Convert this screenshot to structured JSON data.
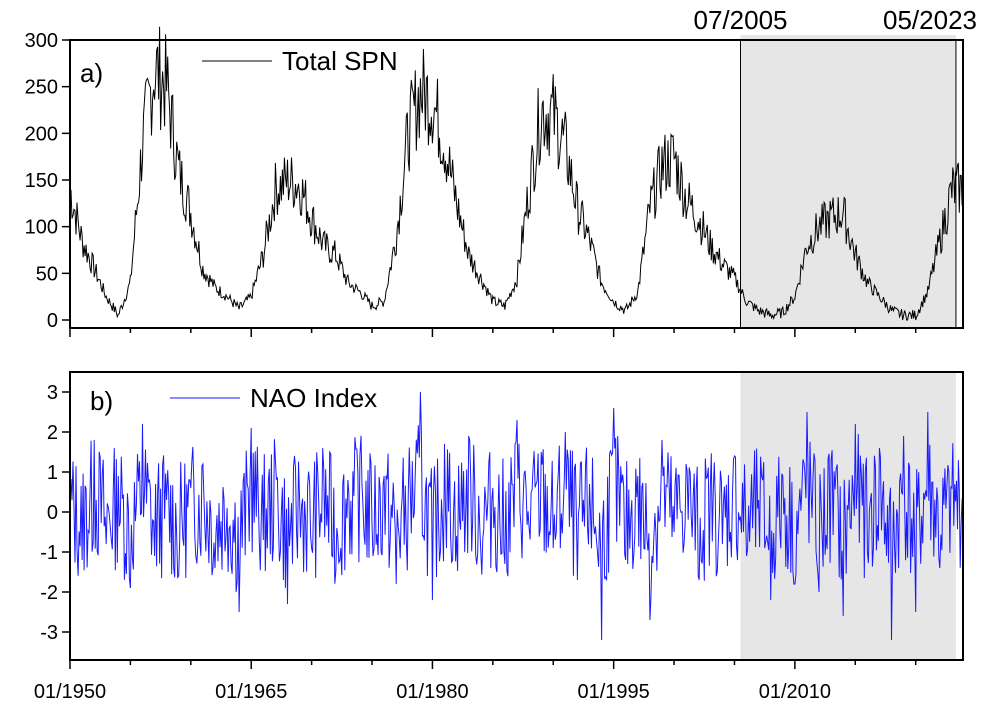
{
  "figure": {
    "markers": [
      {
        "label": "07/2005",
        "date": "2005-07"
      },
      {
        "label": "05/2023",
        "date": "2023-05"
      }
    ],
    "x_ticks": [
      "01/1950",
      "01/1965",
      "01/1980",
      "01/1995",
      "01/2010"
    ]
  },
  "chart_data": [
    {
      "type": "line",
      "panel": "a)",
      "title": "",
      "xlabel": "",
      "ylabel": "",
      "xlim": [
        "1950-01",
        "2023-12"
      ],
      "ylim": [
        0,
        300
      ],
      "y_ticks": [
        0,
        50,
        100,
        150,
        200,
        250,
        300
      ],
      "shaded_interval": [
        "2005-07",
        "2023-05"
      ],
      "series": [
        {
          "name": "Total SPN",
          "color": "#000000",
          "x": [
            "1950-01",
            "1951-01",
            "1952-01",
            "1953-01",
            "1954-01",
            "1955-01",
            "1956-01",
            "1957-01",
            "1958-01",
            "1959-01",
            "1960-01",
            "1961-01",
            "1962-01",
            "1963-01",
            "1964-01",
            "1965-01",
            "1966-01",
            "1967-01",
            "1968-01",
            "1969-01",
            "1970-01",
            "1971-01",
            "1972-01",
            "1973-01",
            "1974-01",
            "1975-01",
            "1976-01",
            "1977-01",
            "1978-01",
            "1979-01",
            "1980-01",
            "1981-01",
            "1982-01",
            "1983-01",
            "1984-01",
            "1985-01",
            "1986-01",
            "1987-01",
            "1988-01",
            "1989-01",
            "1990-01",
            "1991-01",
            "1992-01",
            "1993-01",
            "1994-01",
            "1995-01",
            "1996-01",
            "1997-01",
            "1998-01",
            "1999-01",
            "2000-01",
            "2001-01",
            "2002-01",
            "2003-01",
            "2004-01",
            "2005-01",
            "2006-01",
            "2007-01",
            "2008-01",
            "2009-01",
            "2010-01",
            "2011-01",
            "2012-01",
            "2013-01",
            "2014-01",
            "2015-01",
            "2016-01",
            "2017-01",
            "2018-01",
            "2019-01",
            "2020-01",
            "2021-01",
            "2022-01",
            "2023-01"
          ],
          "values": [
            140,
            85,
            55,
            25,
            5,
            40,
            190,
            270,
            250,
            160,
            115,
            55,
            35,
            25,
            12,
            25,
            70,
            140,
            150,
            145,
            110,
            80,
            70,
            40,
            30,
            15,
            20,
            90,
            200,
            245,
            235,
            190,
            125,
            70,
            45,
            20,
            15,
            45,
            140,
            225,
            220,
            185,
            120,
            85,
            40,
            20,
            10,
            30,
            120,
            165,
            175,
            130,
            110,
            80,
            60,
            45,
            20,
            10,
            5,
            8,
            25,
            80,
            100,
            110,
            115,
            70,
            40,
            25,
            10,
            5,
            5,
            30,
            85,
            140
          ]
        }
      ]
    },
    {
      "type": "line",
      "panel": "b)",
      "title": "",
      "xlabel": "",
      "ylabel": "",
      "xlim": [
        "1950-01",
        "2023-12"
      ],
      "ylim": [
        -3.5,
        3.5
      ],
      "y_ticks": [
        -3,
        -2,
        -1,
        0,
        1,
        2,
        3
      ],
      "shaded_interval": [
        "2005-07",
        "2023-05"
      ],
      "series": [
        {
          "name": "NAO Index",
          "color": "#1a1aff",
          "x": [
            "1950-01",
            "1951-01",
            "1952-01",
            "1953-01",
            "1954-01",
            "1955-01",
            "1956-01",
            "1957-01",
            "1958-01",
            "1959-01",
            "1960-01",
            "1961-01",
            "1962-01",
            "1963-01",
            "1964-01",
            "1965-01",
            "1966-01",
            "1967-01",
            "1968-01",
            "1969-01",
            "1970-01",
            "1971-01",
            "1972-01",
            "1973-01",
            "1974-01",
            "1975-01",
            "1976-01",
            "1977-01",
            "1978-01",
            "1979-01",
            "1980-01",
            "1981-01",
            "1982-01",
            "1983-01",
            "1984-01",
            "1985-01",
            "1986-01",
            "1987-01",
            "1988-01",
            "1989-01",
            "1990-01",
            "1991-01",
            "1992-01",
            "1993-01",
            "1994-01",
            "1995-01",
            "1996-01",
            "1997-01",
            "1998-01",
            "1999-01",
            "2000-01",
            "2001-01",
            "2002-01",
            "2003-01",
            "2004-01",
            "2005-01",
            "2006-01",
            "2007-01",
            "2008-01",
            "2009-01",
            "2010-01",
            "2011-01",
            "2012-01",
            "2013-01",
            "2014-01",
            "2015-01",
            "2016-01",
            "2017-01",
            "2018-01",
            "2019-01",
            "2020-01",
            "2021-01",
            "2022-01",
            "2023-01"
          ],
          "values": [
            0.5,
            -1.2,
            1.8,
            -0.8,
            0.9,
            -1.9,
            2.2,
            -1.1,
            0.3,
            -1.6,
            0.6,
            1.2,
            -1.4,
            0.1,
            -2.5,
            2.1,
            -0.7,
            1.3,
            -2.3,
            0.4,
            -0.9,
            1.1,
            -1.5,
            0.8,
            1.4,
            -0.3,
            0.9,
            -1.8,
            0.5,
            3.0,
            -2.2,
            1.7,
            -0.6,
            1.9,
            -1.0,
            0.6,
            -1.3,
            2.3,
            -0.4,
            1.5,
            -0.9,
            2.0,
            -1.7,
            0.7,
            -3.2,
            2.6,
            -1.2,
            0.9,
            -2.7,
            1.8,
            -0.5,
            1.2,
            -1.6,
            0.6,
            -0.8,
            1.4,
            -1.1,
            0.3,
            -2.2,
            0.9,
            -1.8,
            2.5,
            -2.0,
            1.3,
            -2.6,
            2.2,
            -1.0,
            1.6,
            -3.2,
            1.9,
            -2.5,
            2.5,
            -1.4,
            0.6
          ]
        }
      ]
    }
  ]
}
